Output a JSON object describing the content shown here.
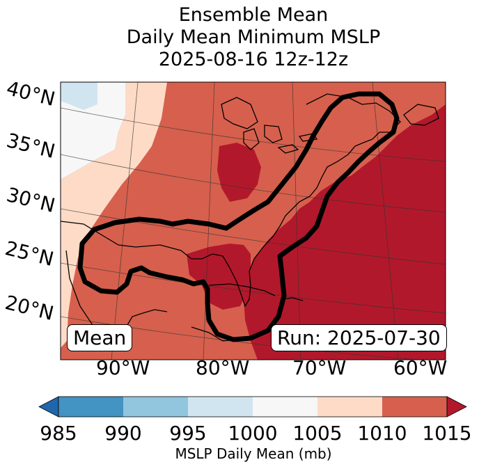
{
  "title": {
    "line1": "Ensemble Mean",
    "line2": "Daily Mean Minimum MSLP",
    "line3": "2025-08-16 12z-12z"
  },
  "map": {
    "mean_label": "Mean",
    "run_label": "Run: 2025-07-30",
    "lat_labels": [
      "40°N",
      "35°N",
      "30°N",
      "25°N",
      "20°N"
    ],
    "lon_labels": [
      "90°W",
      "80°W",
      "70°W",
      "60°W"
    ],
    "coastline_color": "#000000",
    "probability_contour_color": "#000000"
  },
  "colorbar": {
    "title": "MSLP Daily Mean (mb)",
    "ticks": [
      "985",
      "990",
      "995",
      "1000",
      "1005",
      "1010",
      "1015"
    ],
    "bins": [
      {
        "range": "<985",
        "color": "#2166ac"
      },
      {
        "range": "985-990",
        "color": "#4393c3"
      },
      {
        "range": "990-995",
        "color": "#92c5de"
      },
      {
        "range": "995-1000",
        "color": "#d1e5f0"
      },
      {
        "range": "1000-1005",
        "color": "#f7f7f7"
      },
      {
        "range": "1005-1010",
        "color": "#fddbc7"
      },
      {
        "range": "1010-1015",
        "color": "#d6604d"
      },
      {
        "range": ">1015",
        "color": "#b2182b"
      }
    ]
  }
}
